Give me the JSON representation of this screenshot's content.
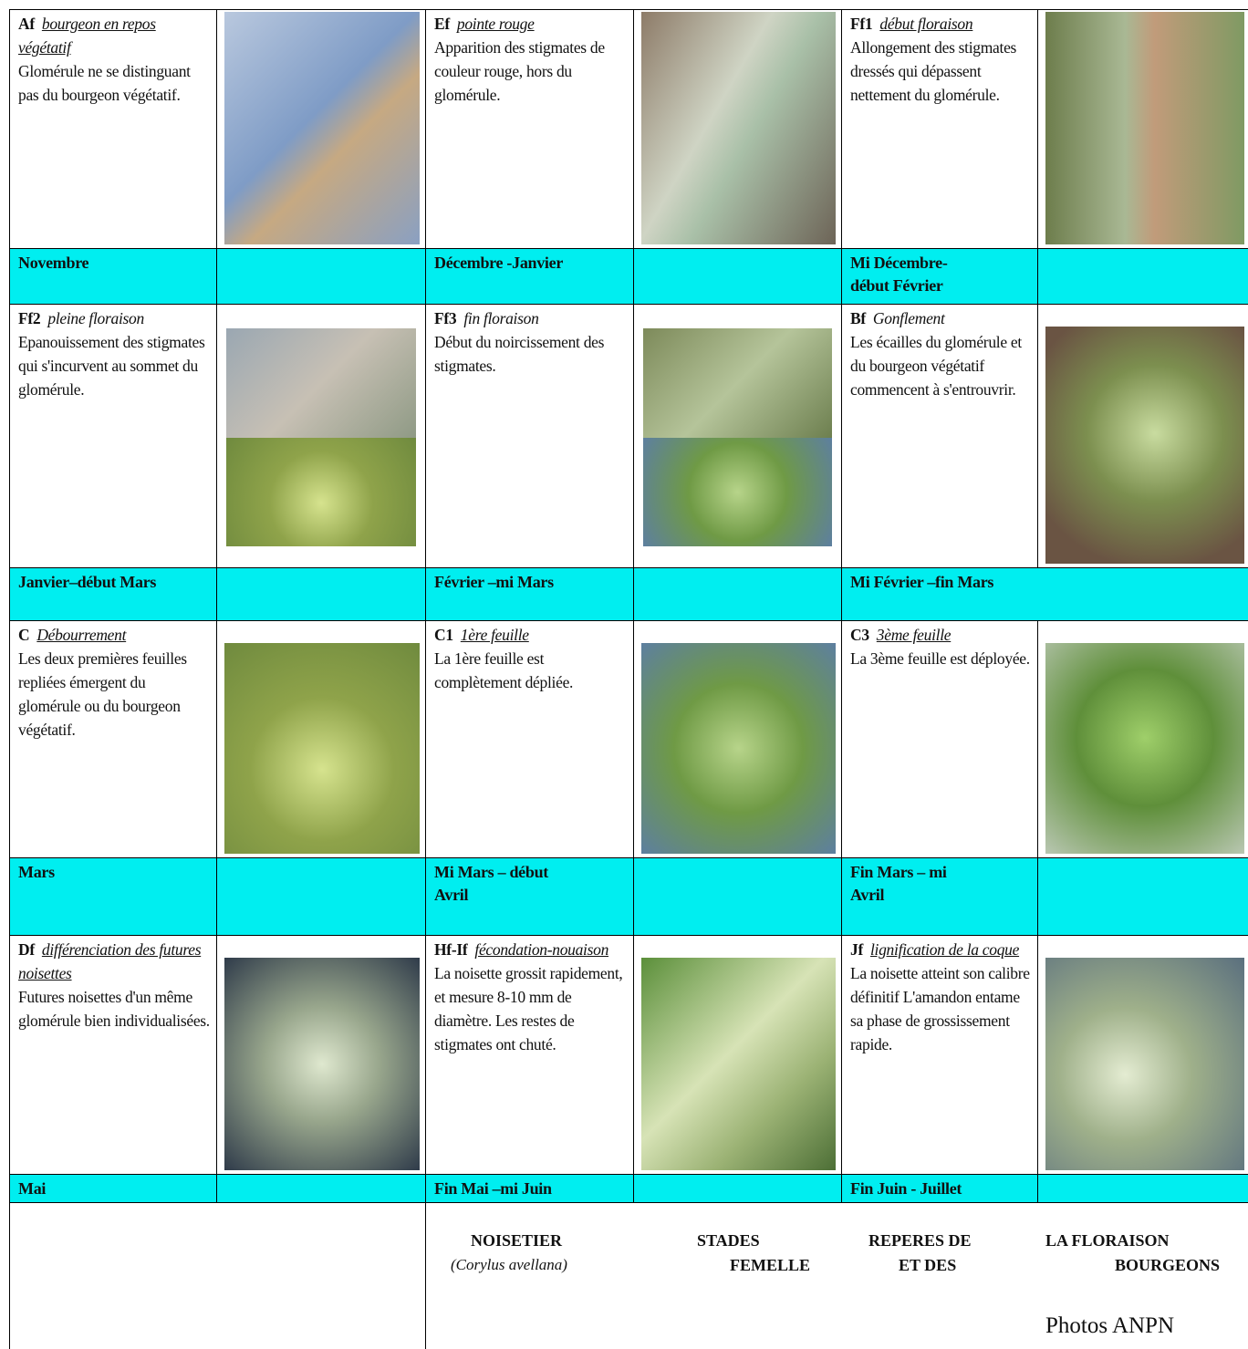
{
  "stages": [
    {
      "code": "Af",
      "name": "bourgeon en repos végétatif",
      "description": "Glomérule ne se distinguant pas du bourgeon végétatif.",
      "period": "Novembre"
    },
    {
      "code": "Ef",
      "name": "pointe rouge",
      "description": "Apparition des stigmates de couleur rouge, hors du glomérule.",
      "period": "Décembre -Janvier"
    },
    {
      "code": "Ff1",
      "name": "début floraison",
      "description": "Allongement des stigmates dressés qui dépassent nettement du glomérule.",
      "period": "Mi Décembre-début Février"
    },
    {
      "code": "Ff2",
      "name": "pleine floraison",
      "description": "Epanouissement des stigmates qui s'incurvent au sommet du glomérule.",
      "period": "Janvier–début Mars"
    },
    {
      "code": "Ff3",
      "name": "fin floraison",
      "description": "Début du noircissement des stigmates.",
      "period": "Février –mi Mars"
    },
    {
      "code": "Bf",
      "name": "Gonflement",
      "description": "Les écailles du glomérule et du bourgeon végétatif commencent à s'entrouvrir.",
      "period": "Mi Février –fin Mars"
    },
    {
      "code": "C",
      "name": "Débourrement",
      "description": "Les deux premières feuilles repliées émergent du glomérule ou du bourgeon végétatif.",
      "period": "Mars"
    },
    {
      "code": "C1",
      "name": "1ère feuille",
      "description": "La 1ère feuille est complètement dépliée.",
      "period": "Mi Mars – début Avril"
    },
    {
      "code": "C3",
      "name": "3ème feuille",
      "description": "La 3ème feuille est déployée.",
      "period": "Fin Mars – mi Avril"
    },
    {
      "code": "Df",
      "name": "différenciation des futures noisettes",
      "description": "Futures noisettes d'un même glomérule bien individualisées.",
      "period": "Mai"
    },
    {
      "code": "Hf-If",
      "name": "fécondation-nouaison",
      "description": "La noisette grossit rapidement, et mesure 8-10 mm de diamètre. Les restes de stigmates ont chuté.",
      "period": "Fin Mai –mi Juin"
    },
    {
      "code": "Jf",
      "name": "lignification de la coque",
      "description": "La noisette atteint son calibre définitif L'amandon entame sa phase de grossissement rapide.",
      "period": "Fin Juin - Juillet"
    }
  ],
  "footer": {
    "titles": [
      "NOISETIER",
      "STADES",
      "REPERES DE",
      "LA FLORAISON"
    ],
    "subtitles": [
      "(Corylus avellana)",
      "FEMELLE",
      "ET DES",
      "BOURGEONS"
    ],
    "credit": "Photos ANPN"
  }
}
